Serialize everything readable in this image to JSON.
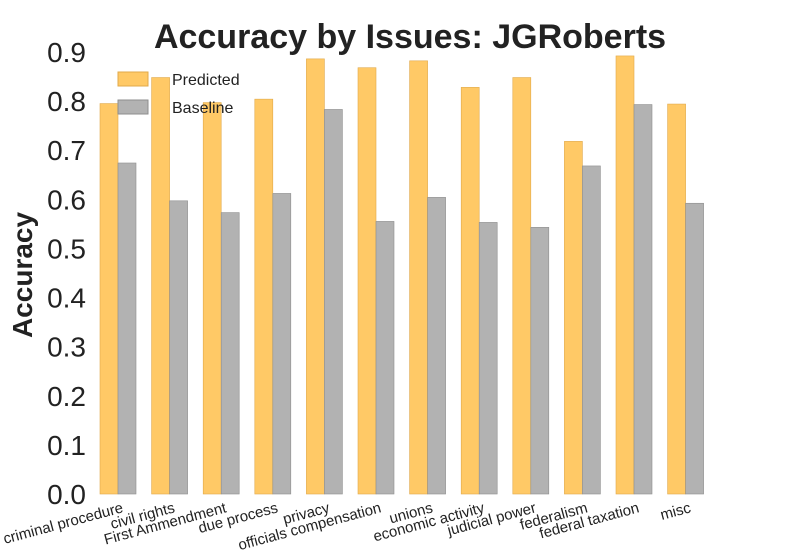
{
  "chart_data": {
    "type": "bar",
    "title": "Accuracy by Issues: JGRoberts",
    "xlabel": "",
    "ylabel": "Accuracy",
    "ylim": [
      0,
      0.9
    ],
    "yticks": [
      "0.0",
      "0.1",
      "0.2",
      "0.3",
      "0.4",
      "0.5",
      "0.6",
      "0.7",
      "0.8",
      "0.9"
    ],
    "grid": false,
    "legend": "top-left",
    "categories": [
      "criminal procedure",
      "civil rights",
      "First Ammendment",
      "due process",
      "privacy",
      "officials compensation",
      "unions",
      "economic activity",
      "judicial power",
      "federalism",
      "federal taxation",
      "misc"
    ],
    "series": [
      {
        "name": "Predicted",
        "color": "#ffc966",
        "values": [
          0.795,
          0.848,
          0.797,
          0.804,
          0.886,
          0.868,
          0.882,
          0.828,
          0.848,
          0.718,
          0.892,
          0.794
        ]
      },
      {
        "name": "Baseline",
        "color": "#b2b2b2",
        "values": [
          0.674,
          0.597,
          0.573,
          0.612,
          0.783,
          0.555,
          0.604,
          0.553,
          0.543,
          0.668,
          0.793,
          0.592
        ]
      }
    ]
  }
}
